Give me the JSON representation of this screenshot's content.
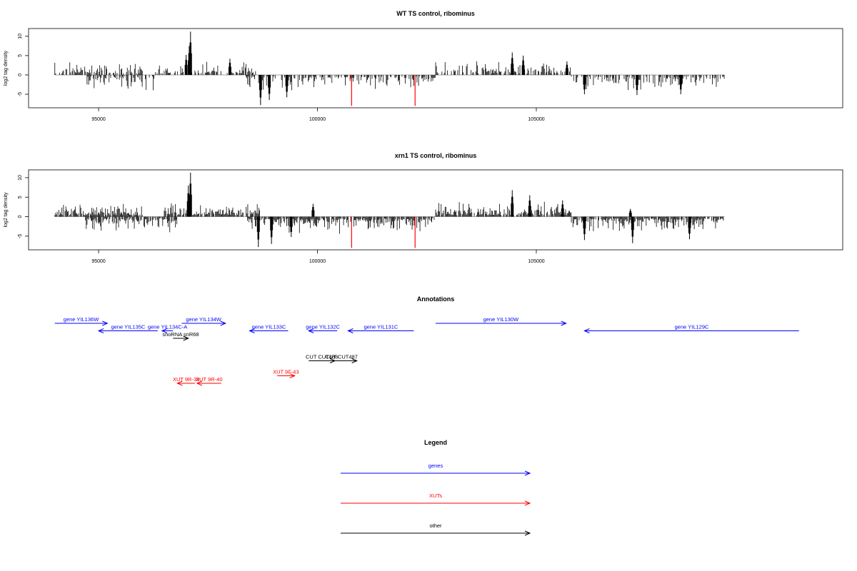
{
  "chart_data": [
    {
      "type": "bar",
      "title": "WT TS control, ribominus",
      "ylabel": "log2 tag density",
      "xticks": [
        95000,
        100000,
        105000
      ],
      "yticks": [
        10,
        5,
        0,
        -5
      ],
      "xlim": [
        93400,
        112000
      ],
      "ylim": [
        -8.5,
        12
      ],
      "grid": false,
      "series": [
        {
          "strand": "+",
          "color": "#000000",
          "spans": [
            [
              94000,
              96000
            ],
            [
              96300,
              98600
            ],
            [
              102700,
              105800
            ]
          ],
          "peaks": [
            [
              97100,
              11.2
            ],
            [
              97070,
              7.5
            ],
            [
              97000,
              5.2
            ],
            [
              98000,
              4.2
            ],
            [
              104450,
              5.8
            ],
            [
              104700,
              5.0
            ],
            [
              105700,
              3.5
            ]
          ]
        },
        {
          "strand": "-",
          "color": "#000000",
          "spans": [
            [
              94700,
              96400
            ],
            [
              98350,
              102700
            ],
            [
              105800,
              109300
            ]
          ],
          "peaks": [
            [
              98700,
              -7.8
            ],
            [
              98900,
              -6.5
            ],
            [
              99300,
              -5.8
            ],
            [
              106100,
              -5.0
            ],
            [
              107300,
              -5.2
            ],
            [
              108300,
              -5.0
            ]
          ]
        },
        {
          "name": "",
          "color": "#ff0000",
          "x": [
            100780,
            102230
          ],
          "values": [
            -8.0,
            -8.0
          ]
        }
      ]
    },
    {
      "type": "bar",
      "title": "xrn1 TS control, ribominus",
      "ylabel": "log2 tag density",
      "xticks": [
        95000,
        100000,
        105000
      ],
      "yticks": [
        10,
        5,
        0,
        -5
      ],
      "xlim": [
        93400,
        112000
      ],
      "ylim": [
        -8.5,
        12
      ],
      "grid": false,
      "series": [
        {
          "strand": "+",
          "color": "#000000",
          "spans": [
            [
              94000,
              96000
            ],
            [
              96500,
              98700
            ],
            [
              102700,
              105800
            ]
          ],
          "peaks": [
            [
              97100,
              11.3
            ],
            [
              97050,
              8.0
            ],
            [
              99900,
              3.3
            ],
            [
              104450,
              6.8
            ],
            [
              104850,
              5.5
            ],
            [
              105600,
              4.2
            ],
            [
              107150,
              2.0
            ]
          ]
        },
        {
          "strand": "-",
          "color": "#000000",
          "spans": [
            [
              94700,
              96800
            ],
            [
              98400,
              102700
            ],
            [
              105800,
              109300
            ]
          ],
          "peaks": [
            [
              98650,
              -7.8
            ],
            [
              98950,
              -7.0
            ],
            [
              99400,
              -5.2
            ],
            [
              106100,
              -6.0
            ],
            [
              107200,
              -6.8
            ],
            [
              108500,
              -5.8
            ]
          ]
        },
        {
          "name": "",
          "color": "#ff0000",
          "x": [
            100780,
            102230
          ],
          "values": [
            -8.0,
            -8.0
          ]
        }
      ]
    }
  ],
  "annotations": {
    "title": "Annotations",
    "items": [
      {
        "label": "gene YIL136W",
        "color": "#0000ff",
        "x1": 94000,
        "x2": 95200,
        "row": 0,
        "dir": "right"
      },
      {
        "label": "gene YIL135C",
        "color": "#0000ff",
        "x1": 95000,
        "x2": 96350,
        "row": 1,
        "dir": "left"
      },
      {
        "label": "gene YIL134C-A",
        "color": "#0000ff",
        "x1": 96450,
        "x2": 96700,
        "row": 1,
        "dir": "left"
      },
      {
        "label": "snoRNA snR68",
        "color": "#000000",
        "x1": 96700,
        "x2": 97050,
        "row": 2,
        "dir": "right"
      },
      {
        "label": "gene YIL134W",
        "color": "#0000ff",
        "x1": 96900,
        "x2": 97900,
        "row": 0,
        "dir": "right"
      },
      {
        "label": "gene YIL133C",
        "color": "#0000ff",
        "x1": 98450,
        "x2": 99330,
        "row": 1,
        "dir": "left"
      },
      {
        "label": "gene YIL132C",
        "color": "#0000ff",
        "x1": 99800,
        "x2": 100450,
        "row": 1,
        "dir": "left"
      },
      {
        "label": "gene YIL131C",
        "color": "#0000ff",
        "x1": 100700,
        "x2": 102200,
        "row": 1,
        "dir": "left"
      },
      {
        "label": "gene YIL130W",
        "color": "#0000ff",
        "x1": 102700,
        "x2": 105680,
        "row": 0,
        "dir": "right"
      },
      {
        "label": "gene YIL129C",
        "color": "#0000ff",
        "x1": 106100,
        "x2": 111000,
        "row": 1,
        "dir": "left"
      },
      {
        "label": "CUT CUT486",
        "color": "#000000",
        "x1": 99800,
        "x2": 100400,
        "row": 5,
        "dir": "right"
      },
      {
        "label": "CUT CUT487",
        "color": "#000000",
        "x1": 100200,
        "x2": 100900,
        "row": 5,
        "dir": "right"
      },
      {
        "label": "XUT 9F-43",
        "color": "#ff0000",
        "x1": 99080,
        "x2": 99480,
        "row": 7,
        "dir": "right"
      },
      {
        "label": "XUT 9R-39",
        "color": "#ff0000",
        "x1": 96800,
        "x2": 97200,
        "row": 8,
        "dir": "left"
      },
      {
        "label": "XUT 9R-40",
        "color": "#ff0000",
        "x1": 97250,
        "x2": 97800,
        "row": 8,
        "dir": "left"
      }
    ]
  },
  "legend": {
    "title": "Legend",
    "items": [
      {
        "label": "genes",
        "color": "#0000ff"
      },
      {
        "label": "XUTs",
        "color": "#ff0000"
      },
      {
        "label": "other",
        "color": "#000000"
      }
    ]
  }
}
